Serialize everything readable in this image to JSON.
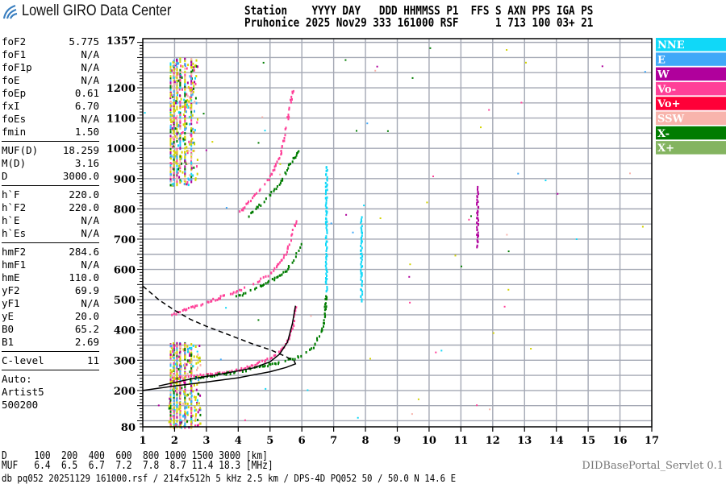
{
  "header": {
    "logo_text": "Lowell GIRO Data Center",
    "line1": "Station    YYYY DAY   DDD HHMMSS P1  FFS S AXN PPS IGA PS",
    "line2": "Pruhonice 2025 Nov29 333 161000 RSF      1 713 100 03+ 21"
  },
  "params": {
    "group1": [
      {
        "label": "foF2",
        "value": "5.775"
      },
      {
        "label": "foF1",
        "value": "N/A"
      },
      {
        "label": "foF1p",
        "value": "N/A"
      },
      {
        "label": "foE",
        "value": "N/A"
      },
      {
        "label": "foEp",
        "value": "0.61"
      },
      {
        "label": "fxI",
        "value": "6.70"
      },
      {
        "label": "foEs",
        "value": "N/A"
      },
      {
        "label": "fmin",
        "value": "1.50"
      }
    ],
    "group2": [
      {
        "label": "MUF(D)",
        "value": "18.259"
      },
      {
        "label": "M(D)",
        "value": "3.16"
      },
      {
        "label": "D",
        "value": "3000.0"
      }
    ],
    "group3": [
      {
        "label": "h`F",
        "value": "220.0"
      },
      {
        "label": "h`F2",
        "value": "220.0"
      },
      {
        "label": "h`E",
        "value": "N/A"
      },
      {
        "label": "h`Es",
        "value": "N/A"
      }
    ],
    "group4": [
      {
        "label": "hmF2",
        "value": "284.6"
      },
      {
        "label": "hmF1",
        "value": "N/A"
      },
      {
        "label": "hmE",
        "value": "110.0"
      },
      {
        "label": "yF2",
        "value": "69.9"
      },
      {
        "label": "yF1",
        "value": "N/A"
      },
      {
        "label": "yE",
        "value": "20.0"
      },
      {
        "label": "B0",
        "value": "65.2"
      },
      {
        "label": "B1",
        "value": "2.69"
      }
    ],
    "clevel": {
      "label": "C-level",
      "value": "11"
    },
    "auto": [
      "Auto:",
      "Artist5",
      "500200"
    ]
  },
  "bottom": {
    "d_line": "D     100  200  400  600  800 1000 1500 3000 [km]",
    "muf_line": "MUF   6.4  6.5  6.7  7.2  7.8  8.7 11.4 18.3 [MHz]",
    "db_line": "db pq052 20251129 161000.rsf / 214fx512h 5 kHz 2.5 km / DPS-4D PQ052 50 / 50.0 N 14.6 E",
    "servlet": "DIDBasePortal_Servlet 0.1"
  },
  "chart_data": {
    "type": "scatter",
    "title": "",
    "xlabel": "",
    "ylabel": "",
    "xlim": [
      1,
      17
    ],
    "ylim": [
      80,
      1357
    ],
    "x_ticks": [
      "1",
      "2",
      "3",
      "4",
      "5",
      "6",
      "7",
      "8",
      "9",
      "10",
      "11",
      "12",
      "13",
      "14",
      "15",
      "16",
      "17"
    ],
    "y_ticks": [
      "1357",
      "1200",
      "1100",
      "1000",
      "900",
      "800",
      "700",
      "600",
      "500",
      "400",
      "300",
      "200",
      "80"
    ],
    "y_tick_values": [
      1357,
      1200,
      1100,
      1000,
      900,
      800,
      700,
      600,
      500,
      400,
      300,
      200,
      80
    ],
    "grid": true,
    "grid_color": "#a4a8b4",
    "legend_placement": "right",
    "legend": [
      {
        "name": "NNE",
        "color": "#10d8f8"
      },
      {
        "name": "E",
        "color": "#40a8f8"
      },
      {
        "name": "W",
        "color": "#b0009c"
      },
      {
        "name": "Vo-",
        "color": "#ff4098"
      },
      {
        "name": "Vo+",
        "color": "#ff0038"
      },
      {
        "name": "SSW",
        "color": "#f8b4ac"
      },
      {
        "name": "X-",
        "color": "#007c00"
      },
      {
        "name": "X+",
        "color": "#84b460"
      }
    ],
    "echo_traces": [
      {
        "name": "Vo-",
        "points": [
          [
            1.9,
            245
          ],
          [
            3,
            255
          ],
          [
            4,
            272
          ],
          [
            4.5,
            288
          ],
          [
            5,
            310
          ],
          [
            5.3,
            335
          ],
          [
            5.5,
            360
          ],
          [
            5.7,
            420
          ],
          [
            5.8,
            485
          ]
        ]
      },
      {
        "name": "X-",
        "points": [
          [
            2.5,
            243
          ],
          [
            4,
            265
          ],
          [
            5,
            290
          ],
          [
            5.8,
            312
          ],
          [
            6.3,
            340
          ],
          [
            6.6,
            400
          ],
          [
            6.7,
            450
          ],
          [
            6.75,
            530
          ]
        ]
      },
      {
        "name": "Vo-",
        "points": [
          [
            1.9,
            455
          ],
          [
            3,
            495
          ],
          [
            3.9,
            528
          ],
          [
            4.5,
            558
          ],
          [
            5,
            590
          ],
          [
            5.4,
            640
          ],
          [
            5.6,
            690
          ],
          [
            5.8,
            770
          ]
        ]
      },
      {
        "name": "X-",
        "points": [
          [
            3.9,
            512
          ],
          [
            4.5,
            540
          ],
          [
            5,
            565
          ],
          [
            5.5,
            600
          ],
          [
            5.8,
            650
          ],
          [
            6,
            700
          ]
        ]
      },
      {
        "name": "Vo-",
        "points": [
          [
            4,
            790
          ],
          [
            4.5,
            850
          ],
          [
            5,
            910
          ],
          [
            5.3,
            980
          ],
          [
            5.5,
            1080
          ],
          [
            5.7,
            1200
          ]
        ]
      },
      {
        "name": "X-",
        "points": [
          [
            4.3,
            780
          ],
          [
            4.8,
            830
          ],
          [
            5.3,
            890
          ],
          [
            5.6,
            950
          ],
          [
            5.9,
            1000
          ]
        ]
      },
      {
        "name": "NNE",
        "points": [
          [
            6.75,
            530
          ],
          [
            6.75,
            950
          ]
        ]
      },
      {
        "name": "NNE",
        "points": [
          [
            7.85,
            500
          ],
          [
            7.85,
            780
          ]
        ]
      },
      {
        "name": "W",
        "points": [
          [
            11.5,
            680
          ],
          [
            11.5,
            880
          ]
        ]
      }
    ],
    "model_curves": [
      {
        "style": "solid",
        "points": [
          [
            1,
            200
          ],
          [
            2,
            215
          ],
          [
            3,
            228
          ],
          [
            4,
            242
          ],
          [
            4.5,
            252
          ],
          [
            5,
            262
          ],
          [
            5.5,
            276
          ],
          [
            5.8,
            288
          ],
          [
            5.75,
            300
          ]
        ]
      },
      {
        "style": "solid",
        "points": [
          [
            1.5,
            215
          ],
          [
            2.5,
            238
          ],
          [
            3.5,
            255
          ],
          [
            4.5,
            275
          ],
          [
            5,
            295
          ],
          [
            5.3,
            320
          ],
          [
            5.55,
            360
          ],
          [
            5.7,
            420
          ],
          [
            5.8,
            480
          ]
        ]
      },
      {
        "style": "dashed",
        "points": [
          [
            1,
            545
          ],
          [
            1.5,
            500
          ],
          [
            2,
            465
          ],
          [
            2.5,
            435
          ],
          [
            3,
            412
          ],
          [
            3.5,
            392
          ],
          [
            4,
            372
          ],
          [
            4.5,
            352
          ],
          [
            5,
            335
          ],
          [
            5.5,
            312
          ],
          [
            5.7,
            300
          ]
        ]
      }
    ]
  }
}
